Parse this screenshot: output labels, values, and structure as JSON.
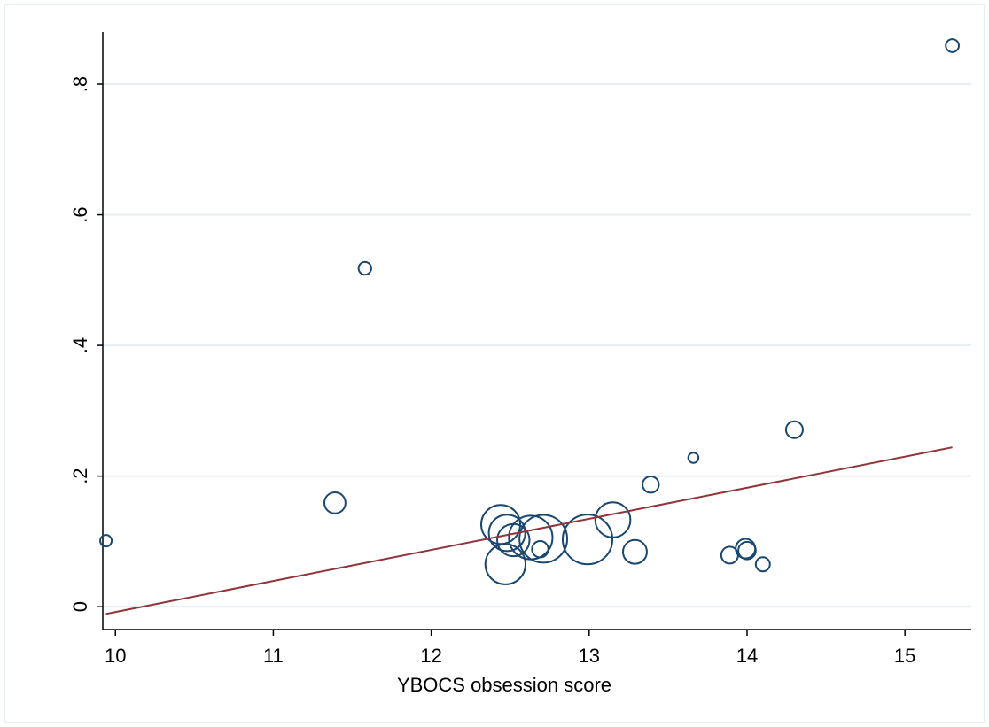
{
  "chart_data": {
    "type": "scatter",
    "title": "",
    "xlabel": "YBOCS obsession score",
    "ylabel": "",
    "xlim": [
      9.92,
      15.42
    ],
    "ylim": [
      -0.035,
      0.88
    ],
    "x_ticks": [
      10,
      11,
      12,
      13,
      14,
      15
    ],
    "x_tick_labels": [
      "10",
      "11",
      "12",
      "13",
      "14",
      "15"
    ],
    "y_ticks": [
      0,
      0.2,
      0.4,
      0.6,
      0.8
    ],
    "y_tick_labels": [
      "0",
      ".2",
      ".4",
      ".6",
      ".8"
    ],
    "grid": "horizontal",
    "legend": "none",
    "colors": {
      "marker": "#1a476f",
      "fit_line": "#90353b",
      "grid": "#e6eef2"
    },
    "series": [
      {
        "marker": "hollow-circle",
        "points": [
          {
            "x": 9.94,
            "y": 0.101,
            "w": 1.4
          },
          {
            "x": 11.39,
            "y": 0.159,
            "w": 4.7
          },
          {
            "x": 11.58,
            "y": 0.518,
            "w": 1.7
          },
          {
            "x": 12.44,
            "y": 0.126,
            "w": 16
          },
          {
            "x": 12.48,
            "y": 0.113,
            "w": 14
          },
          {
            "x": 12.52,
            "y": 0.102,
            "w": 11
          },
          {
            "x": 12.47,
            "y": 0.065,
            "w": 17
          },
          {
            "x": 12.63,
            "y": 0.106,
            "w": 20
          },
          {
            "x": 12.69,
            "y": 0.088,
            "w": 2.8
          },
          {
            "x": 12.71,
            "y": 0.104,
            "w": 24
          },
          {
            "x": 12.99,
            "y": 0.103,
            "w": 26
          },
          {
            "x": 13.15,
            "y": 0.133,
            "w": 13
          },
          {
            "x": 13.29,
            "y": 0.084,
            "w": 6
          },
          {
            "x": 13.39,
            "y": 0.187,
            "w": 2.8
          },
          {
            "x": 13.66,
            "y": 0.228,
            "w": 1.1
          },
          {
            "x": 13.89,
            "y": 0.079,
            "w": 3
          },
          {
            "x": 13.99,
            "y": 0.089,
            "w": 4
          },
          {
            "x": 14.0,
            "y": 0.086,
            "w": 3.2
          },
          {
            "x": 14.1,
            "y": 0.065,
            "w": 2.1
          },
          {
            "x": 14.3,
            "y": 0.271,
            "w": 3
          },
          {
            "x": 15.3,
            "y": 0.859,
            "w": 1.8
          }
        ]
      }
    ],
    "fit_line": {
      "type": "linear",
      "x": [
        9.94,
        15.3
      ],
      "y": [
        -0.011,
        0.244
      ]
    }
  }
}
